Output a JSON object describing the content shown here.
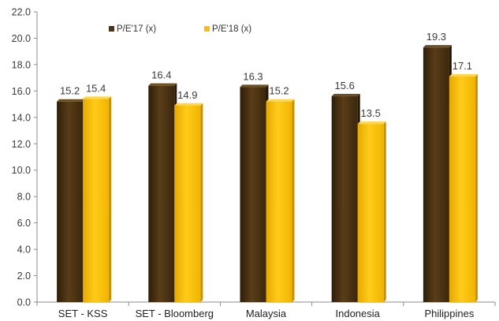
{
  "chart_data": {
    "type": "bar",
    "title": "",
    "xlabel": "",
    "ylabel": "",
    "categories": [
      "SET - KSS",
      "SET - Bloomberg",
      "Malaysia",
      "Indonesia",
      "Philippines"
    ],
    "series": [
      {
        "name": "P/E'17 (x)",
        "color": "#4a3212",
        "values": [
          15.2,
          16.4,
          16.3,
          15.6,
          19.3
        ]
      },
      {
        "name": "P/E'18 (x)",
        "color": "#ffc000",
        "values": [
          15.4,
          14.9,
          15.2,
          13.5,
          17.1
        ]
      }
    ],
    "ylim": [
      0,
      22
    ],
    "yticks": [
      "0.0",
      "2.0",
      "4.0",
      "6.0",
      "8.0",
      "10.0",
      "12.0",
      "14.0",
      "16.0",
      "18.0",
      "20.0",
      "22.0"
    ],
    "data_labels": [
      [
        "15.2",
        "16.4",
        "16.3",
        "15.6",
        "19.3"
      ],
      [
        "15.4",
        "14.9",
        "15.2",
        "13.5",
        "17.1"
      ]
    ],
    "legend_position": "top",
    "grid": false
  }
}
